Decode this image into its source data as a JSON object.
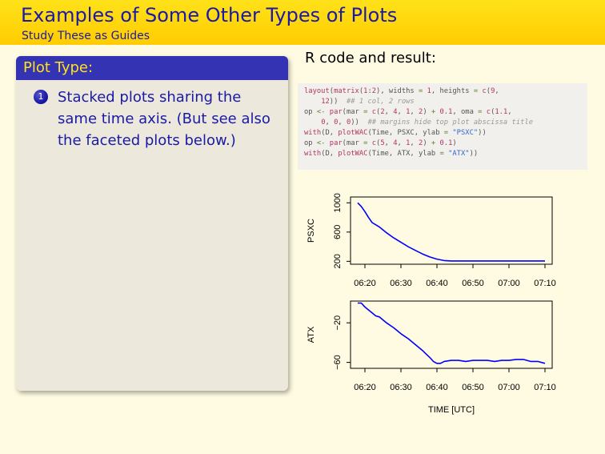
{
  "header": {
    "title": "Examples of Some Other Types of Plots",
    "subtitle": "Study These as Guides"
  },
  "block": {
    "title": "Plot Type:",
    "items": [
      {
        "number": "1",
        "text": "Stacked plots sharing the same time axis. (But see also the faceted plots below.)"
      }
    ]
  },
  "code_section": {
    "title": "R code and result:",
    "lines": [
      "layout(matrix(1:2), widths = 1, heights = c(9,",
      "    12))  ## 1 col, 2 rows",
      "op <- par(mar = c(2, 4, 1, 2) + 0.1, oma = c(1.1,",
      "    0, 0, 0))  ## margins hide top plot abscissa title",
      "with(D, plotWAC(Time, PSXC, ylab = \"PSXC\"))",
      "op <- par(mar = c(5, 4, 1, 2) + 0.1)",
      "with(D, plotWAC(Time, ATX, ylab = \"ATX\"))"
    ]
  },
  "chart_data": [
    {
      "type": "line",
      "ylabel": "PSXC",
      "xlabel": "",
      "x_ticks": [
        "06:20",
        "06:30",
        "06:40",
        "06:50",
        "07:00",
        "07:10"
      ],
      "y_ticks": [
        200,
        600,
        1000
      ],
      "xlim": [
        16,
        72
      ],
      "ylim": [
        160,
        1080
      ],
      "series": [
        {
          "color": "#0000ff",
          "x": [
            18,
            19,
            20,
            21,
            22,
            23,
            24,
            26,
            28,
            30,
            32,
            34,
            36,
            38,
            40,
            42,
            44,
            50,
            60,
            70
          ],
          "y": [
            1000,
            950,
            880,
            800,
            730,
            700,
            670,
            590,
            520,
            460,
            400,
            350,
            300,
            260,
            230,
            210,
            205,
            205,
            205,
            205
          ]
        }
      ]
    },
    {
      "type": "line",
      "ylabel": "ATX",
      "xlabel": "TIME [UTC]",
      "x_ticks": [
        "06:20",
        "06:30",
        "06:40",
        "06:50",
        "07:00",
        "07:10"
      ],
      "y_ticks": [
        -60,
        -20
      ],
      "xlim": [
        16,
        72
      ],
      "ylim": [
        -66,
        2
      ],
      "series": [
        {
          "color": "#0000ff",
          "x": [
            18,
            19,
            20,
            21,
            22,
            23,
            24,
            26,
            28,
            30,
            32,
            34,
            36,
            38,
            39,
            40,
            41,
            42,
            44,
            46,
            48,
            50,
            52,
            54,
            56,
            58,
            60,
            62,
            64,
            66,
            68,
            70
          ],
          "y": [
            0,
            0,
            -4,
            -7,
            -10,
            -13,
            -14,
            -20,
            -25,
            -31,
            -36,
            -42,
            -48,
            -55,
            -59,
            -61,
            -61,
            -59,
            -58,
            -58,
            -59,
            -58,
            -58,
            -58,
            -59,
            -58,
            -58,
            -57,
            -57,
            -59,
            -59,
            -61
          ]
        }
      ]
    }
  ]
}
